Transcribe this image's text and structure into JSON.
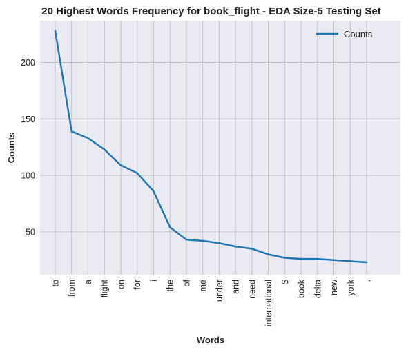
{
  "chart_data": {
    "type": "line",
    "title": "20 Highest Words Frequency for book_flight - EDA Size-5 Testing Set",
    "xlabel": "Words",
    "ylabel": "Counts",
    "categories": [
      "to",
      "from",
      "a",
      "flight",
      "on",
      "for",
      "i",
      "the",
      "of",
      "me",
      "under",
      "and",
      "need",
      "international",
      "$",
      "book",
      "delta",
      "new",
      "york",
      ","
    ],
    "series": [
      {
        "name": "Counts",
        "values": [
          228,
          139,
          133,
          123,
          109,
          102,
          86,
          54,
          43,
          42,
          40,
          37,
          35,
          30,
          27,
          26,
          26,
          25,
          24,
          23
        ]
      }
    ],
    "ylim": [
      12,
      237
    ],
    "yticks": [
      50,
      100,
      150,
      200
    ],
    "grid": true,
    "legend": "top-right",
    "colors": {
      "line": "#1f77b4",
      "background": "#eaeaf2",
      "grid": "#c0c0c8"
    }
  }
}
